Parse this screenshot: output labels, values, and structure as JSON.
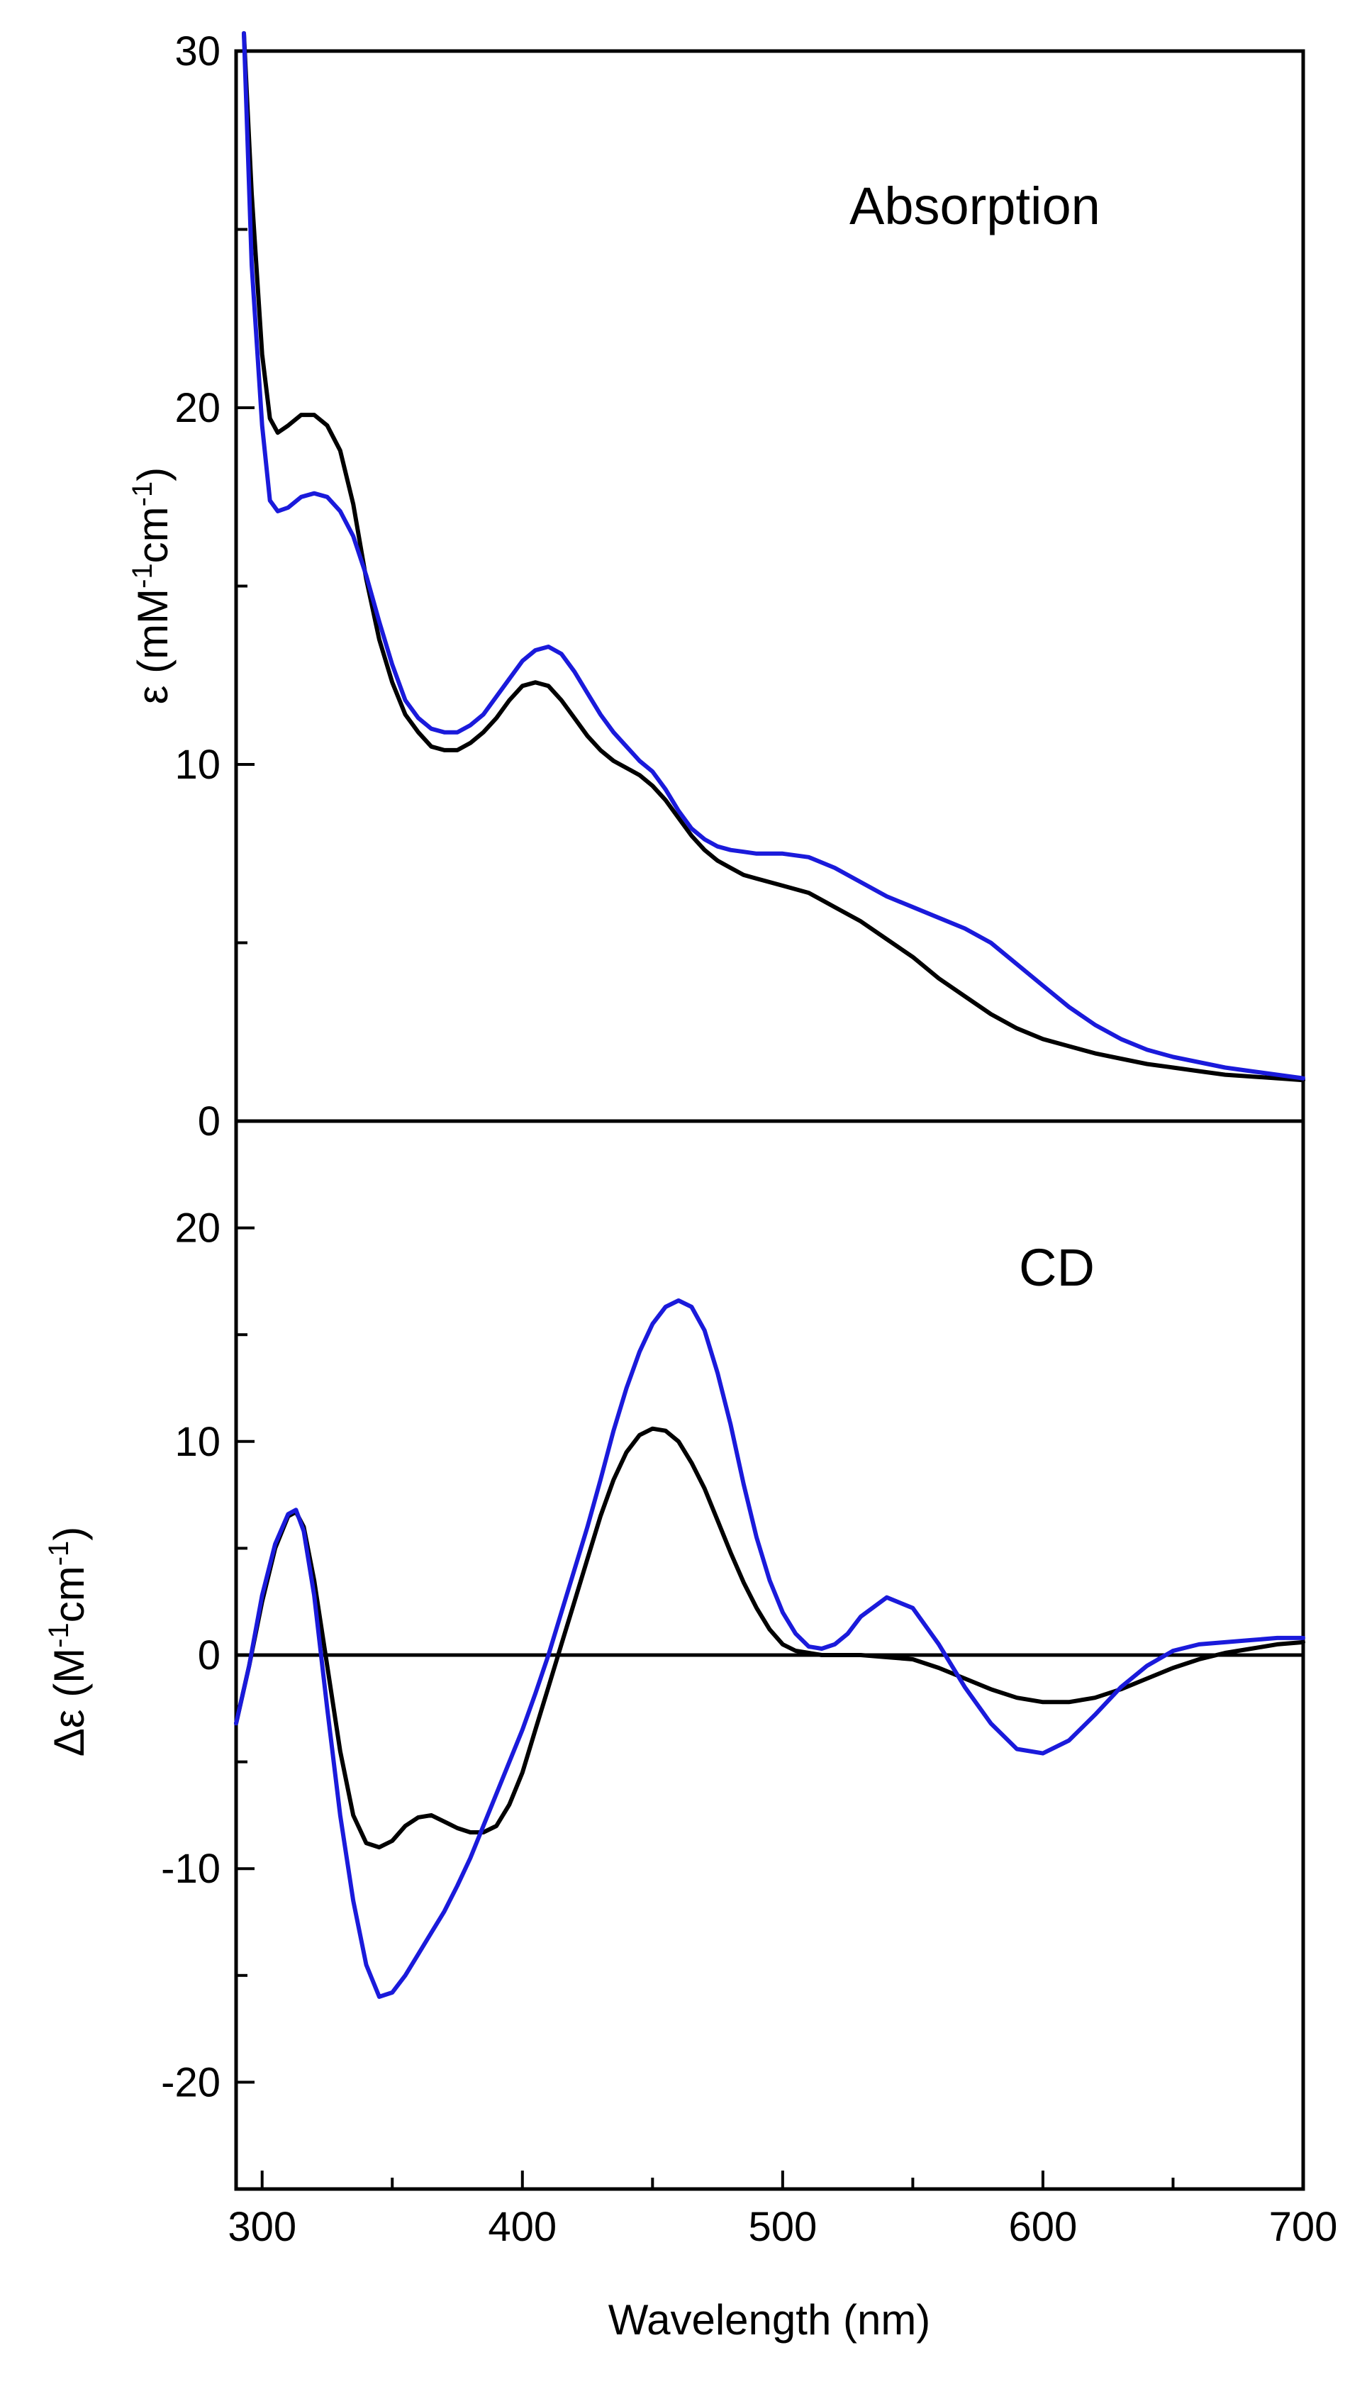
{
  "chart_data": [
    {
      "type": "line",
      "panel_label": "Absorption",
      "xlabel": "Wavelength (nm)",
      "ylabel": "ε (mM-1cm-1)",
      "ylabel_parts": {
        "pre": "ε (mM",
        "sup1": "-1",
        "mid": "cm",
        "sup2": "-1",
        "post": ")"
      },
      "xlim": [
        290,
        700
      ],
      "ylim": [
        0,
        30
      ],
      "x_ticks": [
        300,
        400,
        500,
        600,
        700
      ],
      "y_ticks": [
        0,
        10,
        20,
        30
      ],
      "y_tick_labels": [
        "0",
        "10",
        "20",
        "30"
      ],
      "y_minor_step": 5,
      "grid": false,
      "series": [
        {
          "color": "#000000",
          "x": [
            293,
            296,
            300,
            303,
            306,
            310,
            315,
            320,
            325,
            330,
            335,
            340,
            345,
            350,
            355,
            360,
            365,
            370,
            375,
            380,
            385,
            390,
            395,
            400,
            405,
            410,
            415,
            420,
            425,
            430,
            435,
            440,
            445,
            450,
            455,
            460,
            465,
            470,
            475,
            480,
            485,
            490,
            495,
            500,
            510,
            520,
            530,
            540,
            550,
            560,
            570,
            580,
            590,
            600,
            610,
            620,
            630,
            640,
            650,
            660,
            670,
            680,
            690,
            700
          ],
          "y": [
            30.5,
            26,
            21.5,
            19.7,
            19.3,
            19.5,
            19.8,
            19.8,
            19.5,
            18.8,
            17.3,
            15.2,
            13.5,
            12.3,
            11.4,
            10.9,
            10.5,
            10.4,
            10.4,
            10.6,
            10.9,
            11.3,
            11.8,
            12.2,
            12.3,
            12.2,
            11.8,
            11.3,
            10.8,
            10.4,
            10.1,
            9.9,
            9.7,
            9.4,
            9.0,
            8.5,
            8.0,
            7.6,
            7.3,
            7.1,
            6.9,
            6.8,
            6.7,
            6.6,
            6.4,
            6.0,
            5.6,
            5.1,
            4.6,
            4.0,
            3.5,
            3.0,
            2.6,
            2.3,
            2.1,
            1.9,
            1.75,
            1.6,
            1.5,
            1.4,
            1.3,
            1.25,
            1.2,
            1.15
          ]
        },
        {
          "color": "#1a1adb",
          "x": [
            293,
            296,
            300,
            303,
            306,
            310,
            315,
            320,
            325,
            330,
            335,
            340,
            345,
            350,
            355,
            360,
            365,
            370,
            375,
            380,
            385,
            390,
            395,
            400,
            405,
            410,
            415,
            420,
            425,
            430,
            435,
            440,
            445,
            450,
            455,
            460,
            465,
            470,
            475,
            480,
            485,
            490,
            495,
            500,
            510,
            520,
            530,
            540,
            550,
            560,
            570,
            580,
            590,
            600,
            610,
            620,
            630,
            640,
            650,
            660,
            670,
            680,
            690,
            700
          ],
          "y": [
            30.5,
            24,
            19.5,
            17.4,
            17.1,
            17.2,
            17.5,
            17.6,
            17.5,
            17.1,
            16.4,
            15.3,
            14.0,
            12.8,
            11.8,
            11.3,
            11.0,
            10.9,
            10.9,
            11.1,
            11.4,
            11.9,
            12.4,
            12.9,
            13.2,
            13.3,
            13.1,
            12.6,
            12.0,
            11.4,
            10.9,
            10.5,
            10.1,
            9.8,
            9.3,
            8.7,
            8.2,
            7.9,
            7.7,
            7.6,
            7.55,
            7.5,
            7.5,
            7.5,
            7.4,
            7.1,
            6.7,
            6.3,
            6.0,
            5.7,
            5.4,
            5.0,
            4.4,
            3.8,
            3.2,
            2.7,
            2.3,
            2.0,
            1.8,
            1.65,
            1.5,
            1.4,
            1.3,
            1.2
          ]
        }
      ]
    },
    {
      "type": "line",
      "panel_label": "CD",
      "xlabel": "Wavelength (nm)",
      "ylabel": "Δε (M-1cm-1)",
      "ylabel_parts": {
        "pre": "Δε (M",
        "sup1": "-1",
        "mid": "cm",
        "sup2": "-1",
        "post": ")"
      },
      "xlim": [
        290,
        700
      ],
      "ylim": [
        -25,
        25
      ],
      "x_ticks": [
        300,
        400,
        500,
        600,
        700
      ],
      "x_tick_labels": [
        "300",
        "400",
        "500",
        "600",
        "700"
      ],
      "y_ticks": [
        -20,
        -10,
        0,
        10,
        20
      ],
      "y_tick_labels": [
        "-20",
        "-10",
        "0",
        "10",
        "20"
      ],
      "y_minor_step": 5,
      "zero_line": true,
      "grid": false,
      "series": [
        {
          "color": "#000000",
          "x": [
            290,
            295,
            300,
            305,
            310,
            313,
            316,
            320,
            325,
            330,
            335,
            340,
            345,
            350,
            355,
            360,
            365,
            370,
            375,
            380,
            385,
            390,
            395,
            400,
            405,
            410,
            415,
            420,
            425,
            430,
            435,
            440,
            445,
            450,
            455,
            460,
            465,
            470,
            475,
            480,
            485,
            490,
            495,
            500,
            505,
            510,
            515,
            520,
            525,
            530,
            540,
            550,
            560,
            570,
            580,
            590,
            600,
            610,
            620,
            630,
            640,
            650,
            660,
            670,
            680,
            690,
            700
          ],
          "y": [
            -3.2,
            -0.5,
            2.5,
            5.0,
            6.5,
            6.7,
            6.0,
            3.5,
            -0.5,
            -4.5,
            -7.5,
            -8.8,
            -9.0,
            -8.7,
            -8.0,
            -7.6,
            -7.5,
            -7.8,
            -8.1,
            -8.3,
            -8.3,
            -8.0,
            -7.0,
            -5.5,
            -3.5,
            -1.5,
            0.5,
            2.5,
            4.5,
            6.5,
            8.2,
            9.5,
            10.3,
            10.6,
            10.5,
            10.0,
            9.0,
            7.8,
            6.3,
            4.8,
            3.4,
            2.2,
            1.2,
            0.5,
            0.2,
            0.1,
            0.0,
            0.0,
            0.0,
            0.0,
            -0.1,
            -0.2,
            -0.6,
            -1.1,
            -1.6,
            -2.0,
            -2.2,
            -2.2,
            -2.0,
            -1.6,
            -1.1,
            -0.6,
            -0.2,
            0.1,
            0.3,
            0.5,
            0.6
          ]
        },
        {
          "color": "#1a1adb",
          "x": [
            290,
            295,
            300,
            305,
            310,
            313,
            316,
            320,
            325,
            330,
            335,
            340,
            345,
            350,
            355,
            360,
            365,
            370,
            375,
            380,
            385,
            390,
            395,
            400,
            405,
            410,
            415,
            420,
            425,
            430,
            435,
            440,
            445,
            450,
            455,
            460,
            465,
            470,
            475,
            480,
            485,
            490,
            495,
            500,
            505,
            510,
            515,
            520,
            525,
            530,
            540,
            550,
            560,
            570,
            580,
            590,
            600,
            610,
            620,
            630,
            640,
            650,
            660,
            670,
            680,
            690,
            700
          ],
          "y": [
            -3.2,
            -0.5,
            2.8,
            5.2,
            6.6,
            6.8,
            5.8,
            2.8,
            -2.5,
            -7.5,
            -11.5,
            -14.5,
            -16.0,
            -15.8,
            -15.0,
            -14.0,
            -13.0,
            -12.0,
            -10.8,
            -9.5,
            -8.0,
            -6.5,
            -5.0,
            -3.5,
            -1.8,
            0.0,
            2.0,
            4.0,
            6.0,
            8.2,
            10.5,
            12.5,
            14.2,
            15.5,
            16.3,
            16.6,
            16.3,
            15.2,
            13.2,
            10.8,
            8.0,
            5.5,
            3.5,
            2.0,
            1.0,
            0.4,
            0.3,
            0.5,
            1.0,
            1.8,
            2.7,
            2.2,
            0.5,
            -1.5,
            -3.2,
            -4.4,
            -4.6,
            -4.0,
            -2.8,
            -1.5,
            -0.5,
            0.2,
            0.5,
            0.6,
            0.7,
            0.8,
            0.8
          ]
        }
      ]
    }
  ]
}
